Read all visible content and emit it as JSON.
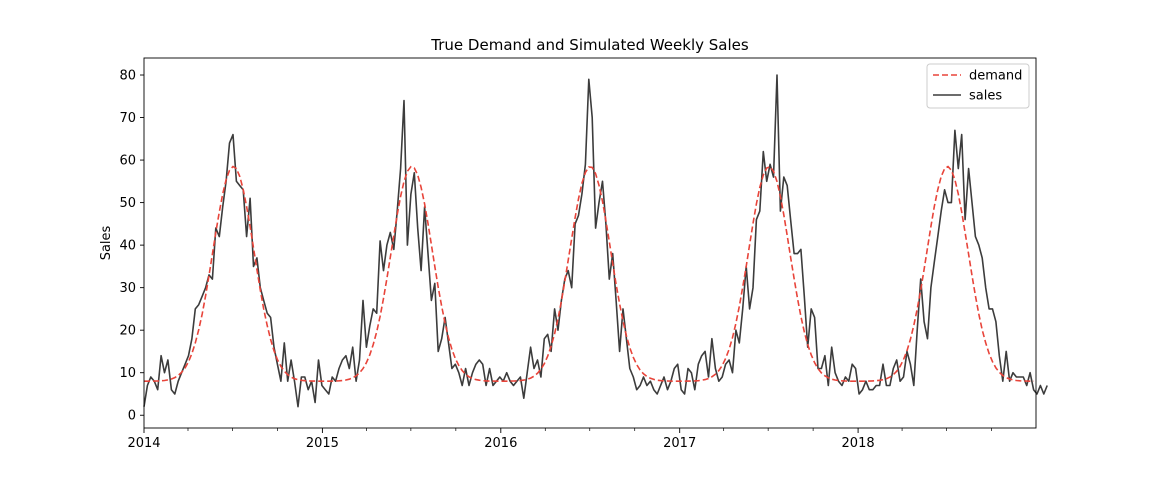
{
  "chart_data": {
    "type": "line",
    "title": "True Demand and Simulated Weekly Sales",
    "xlabel": "",
    "ylabel": "Sales",
    "xlim": [
      "2014-01-01",
      "2018-12-31"
    ],
    "ylim": [
      -3,
      84
    ],
    "x_ticks": [
      "2014",
      "2015",
      "2016",
      "2017",
      "2018"
    ],
    "x_minor_ticks": "quarterly",
    "y_ticks": [
      0,
      10,
      20,
      30,
      40,
      50,
      60,
      70,
      80
    ],
    "grid": false,
    "legend": {
      "position": "top-right"
    },
    "series": [
      {
        "name": "demand",
        "style": "dashed",
        "color": "#e8443a",
        "model": "seasonal",
        "x_start": "2014-01-01",
        "x_step_days": 7,
        "n": 261,
        "base": 8,
        "peak": 58.5,
        "peak_day_of_year": 183,
        "width_days": 42
      },
      {
        "name": "sales",
        "style": "solid",
        "color": "#3c3c3c",
        "x_start": "2014-01-01",
        "x_step_days": 7,
        "values": [
          2,
          7,
          9,
          8,
          6,
          14,
          10,
          13,
          6,
          5,
          8,
          10,
          12,
          14,
          18,
          25,
          26,
          28,
          30,
          33,
          32,
          44,
          42,
          49,
          55,
          64,
          66,
          55,
          54,
          53,
          42,
          51,
          35,
          37,
          30,
          27,
          24,
          23,
          16,
          12,
          8,
          17,
          8,
          13,
          8,
          2,
          9,
          9,
          6,
          8,
          3,
          13,
          7,
          6,
          5,
          9,
          8,
          11,
          13,
          14,
          11,
          16,
          8,
          13,
          27,
          16,
          21,
          25,
          24,
          41,
          34,
          40,
          43,
          39,
          48,
          58,
          74,
          40,
          52,
          57,
          44,
          34,
          49,
          38,
          27,
          31,
          15,
          18,
          23,
          17,
          11,
          12,
          10,
          7,
          11,
          7,
          10,
          12,
          13,
          12,
          7,
          11,
          7,
          8,
          9,
          8,
          10,
          8,
          7,
          8,
          9,
          4,
          10,
          16,
          11,
          13,
          9,
          18,
          19,
          15,
          25,
          20,
          27,
          32,
          34,
          30,
          45,
          47,
          52,
          59,
          79,
          70,
          44,
          50,
          55,
          45,
          32,
          38,
          27,
          15,
          25,
          18,
          11,
          9,
          6,
          7,
          9,
          7,
          8,
          6,
          5,
          7,
          9,
          6,
          8,
          11,
          12,
          6,
          5,
          11,
          10,
          6,
          12,
          14,
          15,
          9,
          18,
          11,
          8,
          9,
          12,
          13,
          10,
          20,
          17,
          25,
          35,
          25,
          30,
          46,
          48,
          62,
          55,
          59,
          56,
          80,
          48,
          56,
          54,
          46,
          38,
          38,
          39,
          28,
          16,
          25,
          23,
          11,
          11,
          14,
          7,
          16,
          10,
          8,
          7,
          9,
          8,
          12,
          11,
          5,
          6,
          8,
          6,
          6,
          7,
          7,
          12,
          7,
          7,
          11,
          13,
          8,
          9,
          15,
          12,
          7,
          20,
          32,
          22,
          18,
          30,
          36,
          42,
          48,
          53,
          50,
          50,
          67,
          58,
          66,
          46,
          58,
          50,
          42,
          40,
          37,
          30,
          25,
          25,
          22,
          14,
          8,
          15,
          8,
          10,
          9,
          9,
          9,
          7,
          10,
          6,
          5,
          7,
          5,
          7
        ]
      }
    ]
  }
}
